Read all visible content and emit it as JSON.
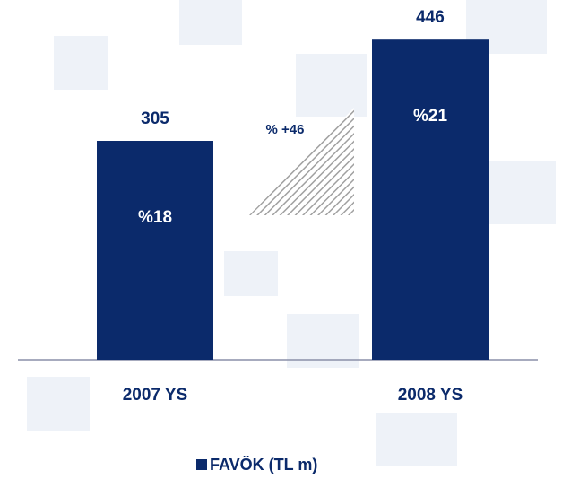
{
  "chart_data": {
    "type": "bar",
    "categories": [
      "2007 YS",
      "2008 YS"
    ],
    "series": [
      {
        "name": "FAVÖK (TL m)",
        "color": "#0b2a6b",
        "values": [
          305,
          446
        ]
      }
    ],
    "inner_labels": [
      "%18",
      "%21"
    ],
    "annotation": "% +46",
    "ylim": [
      0,
      500
    ],
    "legend": "bottom"
  }
}
